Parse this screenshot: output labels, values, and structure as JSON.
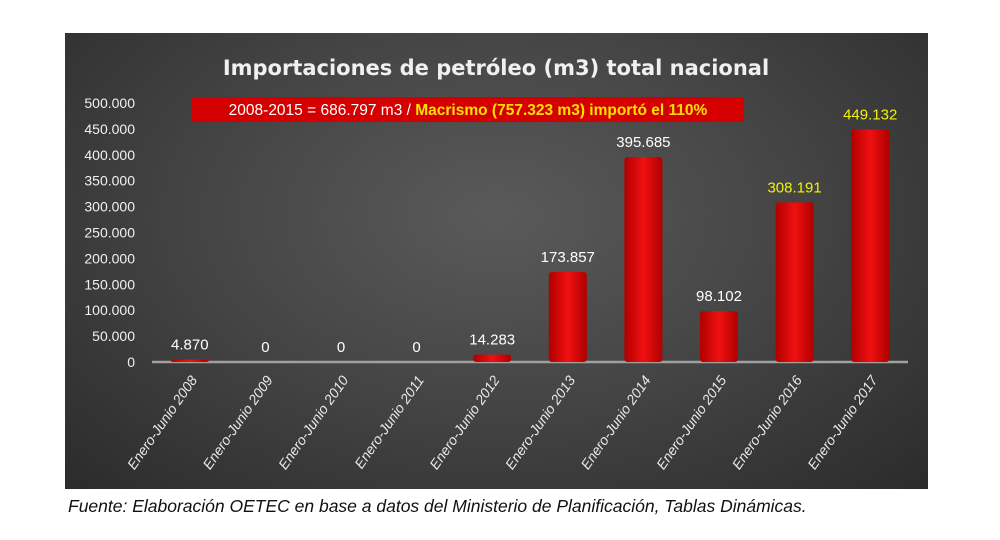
{
  "chart_data": {
    "type": "bar",
    "title": "Importaciones de petróleo (m3) total nacional",
    "annotation": {
      "part1": "2008-2015 = 686.797 m3 / ",
      "part2": "Macrismo  (757.323 m3)  importó el 110%"
    },
    "categories": [
      "Enero-Junio 2008",
      "Enero-Junio 2009",
      "Enero-Junio 2010",
      "Enero-Junio 2011",
      "Enero-Junio 2012",
      "Enero-Junio 2013",
      "Enero-Junio 2014",
      "Enero-Junio 2015",
      "Enero-Junio 2016",
      "Enero-Junio 2017"
    ],
    "values": [
      4870,
      0,
      0,
      0,
      14283,
      173857,
      395685,
      98102,
      308191,
      449132
    ],
    "data_labels": [
      "4.870",
      "0",
      "0",
      "0",
      "14.283",
      "173.857",
      "395.685",
      "98.102",
      "308.191",
      "449.132"
    ],
    "highlighted": [
      false,
      false,
      false,
      false,
      false,
      false,
      false,
      false,
      true,
      true
    ],
    "yticks": [
      0,
      50000,
      100000,
      150000,
      200000,
      250000,
      300000,
      350000,
      400000,
      450000,
      500000
    ],
    "ytick_labels": [
      "0",
      "50.000",
      "100.000",
      "150.000",
      "200.000",
      "250.000",
      "300.000",
      "350.000",
      "400.000",
      "450.000",
      "500.000"
    ],
    "ylim": [
      0,
      500000
    ],
    "xlabel": "",
    "ylabel": "",
    "grid": false,
    "colors": {
      "bar": "#e00000",
      "label": "#ffffff",
      "highlight_label": "#f2f200",
      "annotation_bg": "#d40000"
    }
  },
  "caption": "Fuente: Elaboración OETEC en base a datos del Ministerio de Planificación, Tablas Dinámicas."
}
